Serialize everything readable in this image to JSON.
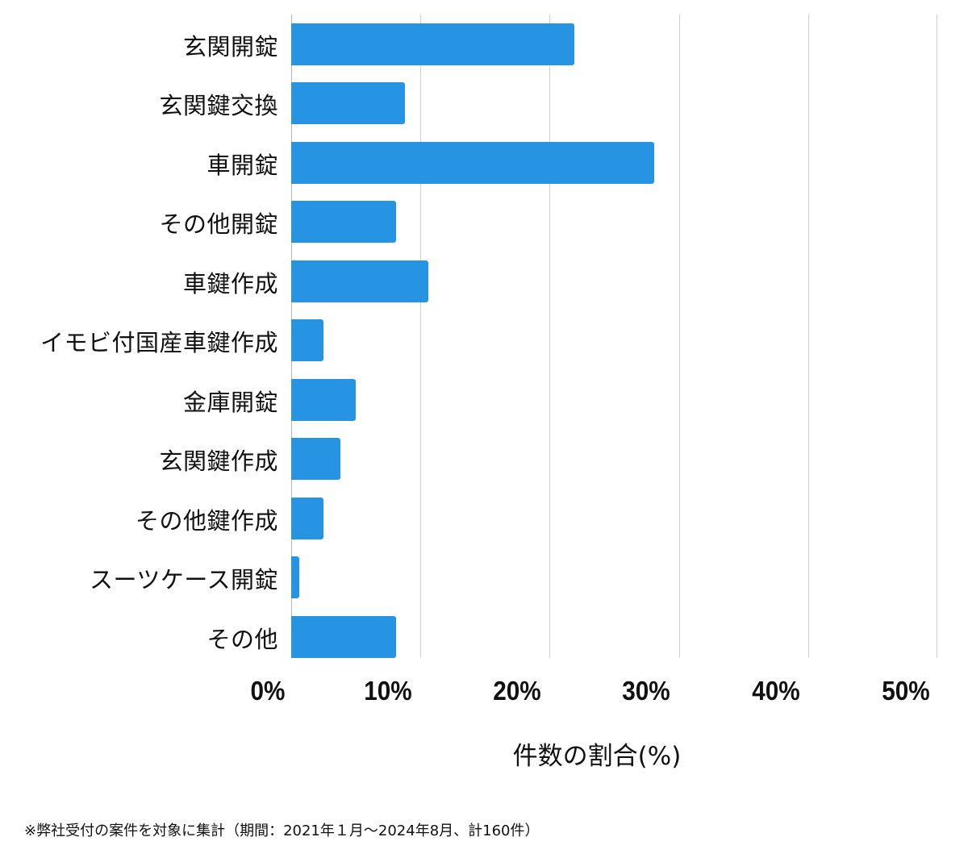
{
  "chart_data": {
    "type": "bar",
    "orientation": "horizontal",
    "title": "",
    "categories": [
      "玄関開錠",
      "玄関鍵交換",
      "車開錠",
      "その他開錠",
      "車鍵作成",
      "イモビ付国産車鍵作成",
      "金庫開錠",
      "玄関鍵作成",
      "その他鍵作成",
      "スーツケース開錠",
      "その他"
    ],
    "values": [
      21.9,
      8.8,
      28.1,
      8.1,
      10.6,
      2.5,
      5.0,
      3.8,
      2.5,
      0.6,
      8.1
    ],
    "xlabel": "件数の割合(%)",
    "ylabel": "",
    "xlim": [
      0,
      50
    ],
    "xticks": [
      "0%",
      "10%",
      "20%",
      "30%",
      "40%",
      "50%"
    ],
    "grid": true,
    "legend": null,
    "bar_color": "#2793e3",
    "footnote": "※弊社受付の案件を対象に集計（期間：2021年１月～2024年8月、計160件）"
  },
  "labels": {
    "c0": "玄関開錠",
    "c1": "玄関鍵交換",
    "c2": "車開錠",
    "c3": "その他開錠",
    "c4": "車鍵作成",
    "c5": "イモビ付国産車鍵作成",
    "c6": "金庫開錠",
    "c7": "玄関鍵作成",
    "c8": "その他鍵作成",
    "c9": "スーツケース開錠",
    "c10": "その他"
  },
  "ticks": {
    "t0": "0%",
    "t1": "10%",
    "t2": "20%",
    "t3": "30%",
    "t4": "40%",
    "t5": "50%"
  },
  "axis": {
    "xlabel": "件数の割合(%)"
  },
  "footnote": "※弊社受付の案件を対象に集計（期間：2021年１月～2024年8月、計160件）"
}
